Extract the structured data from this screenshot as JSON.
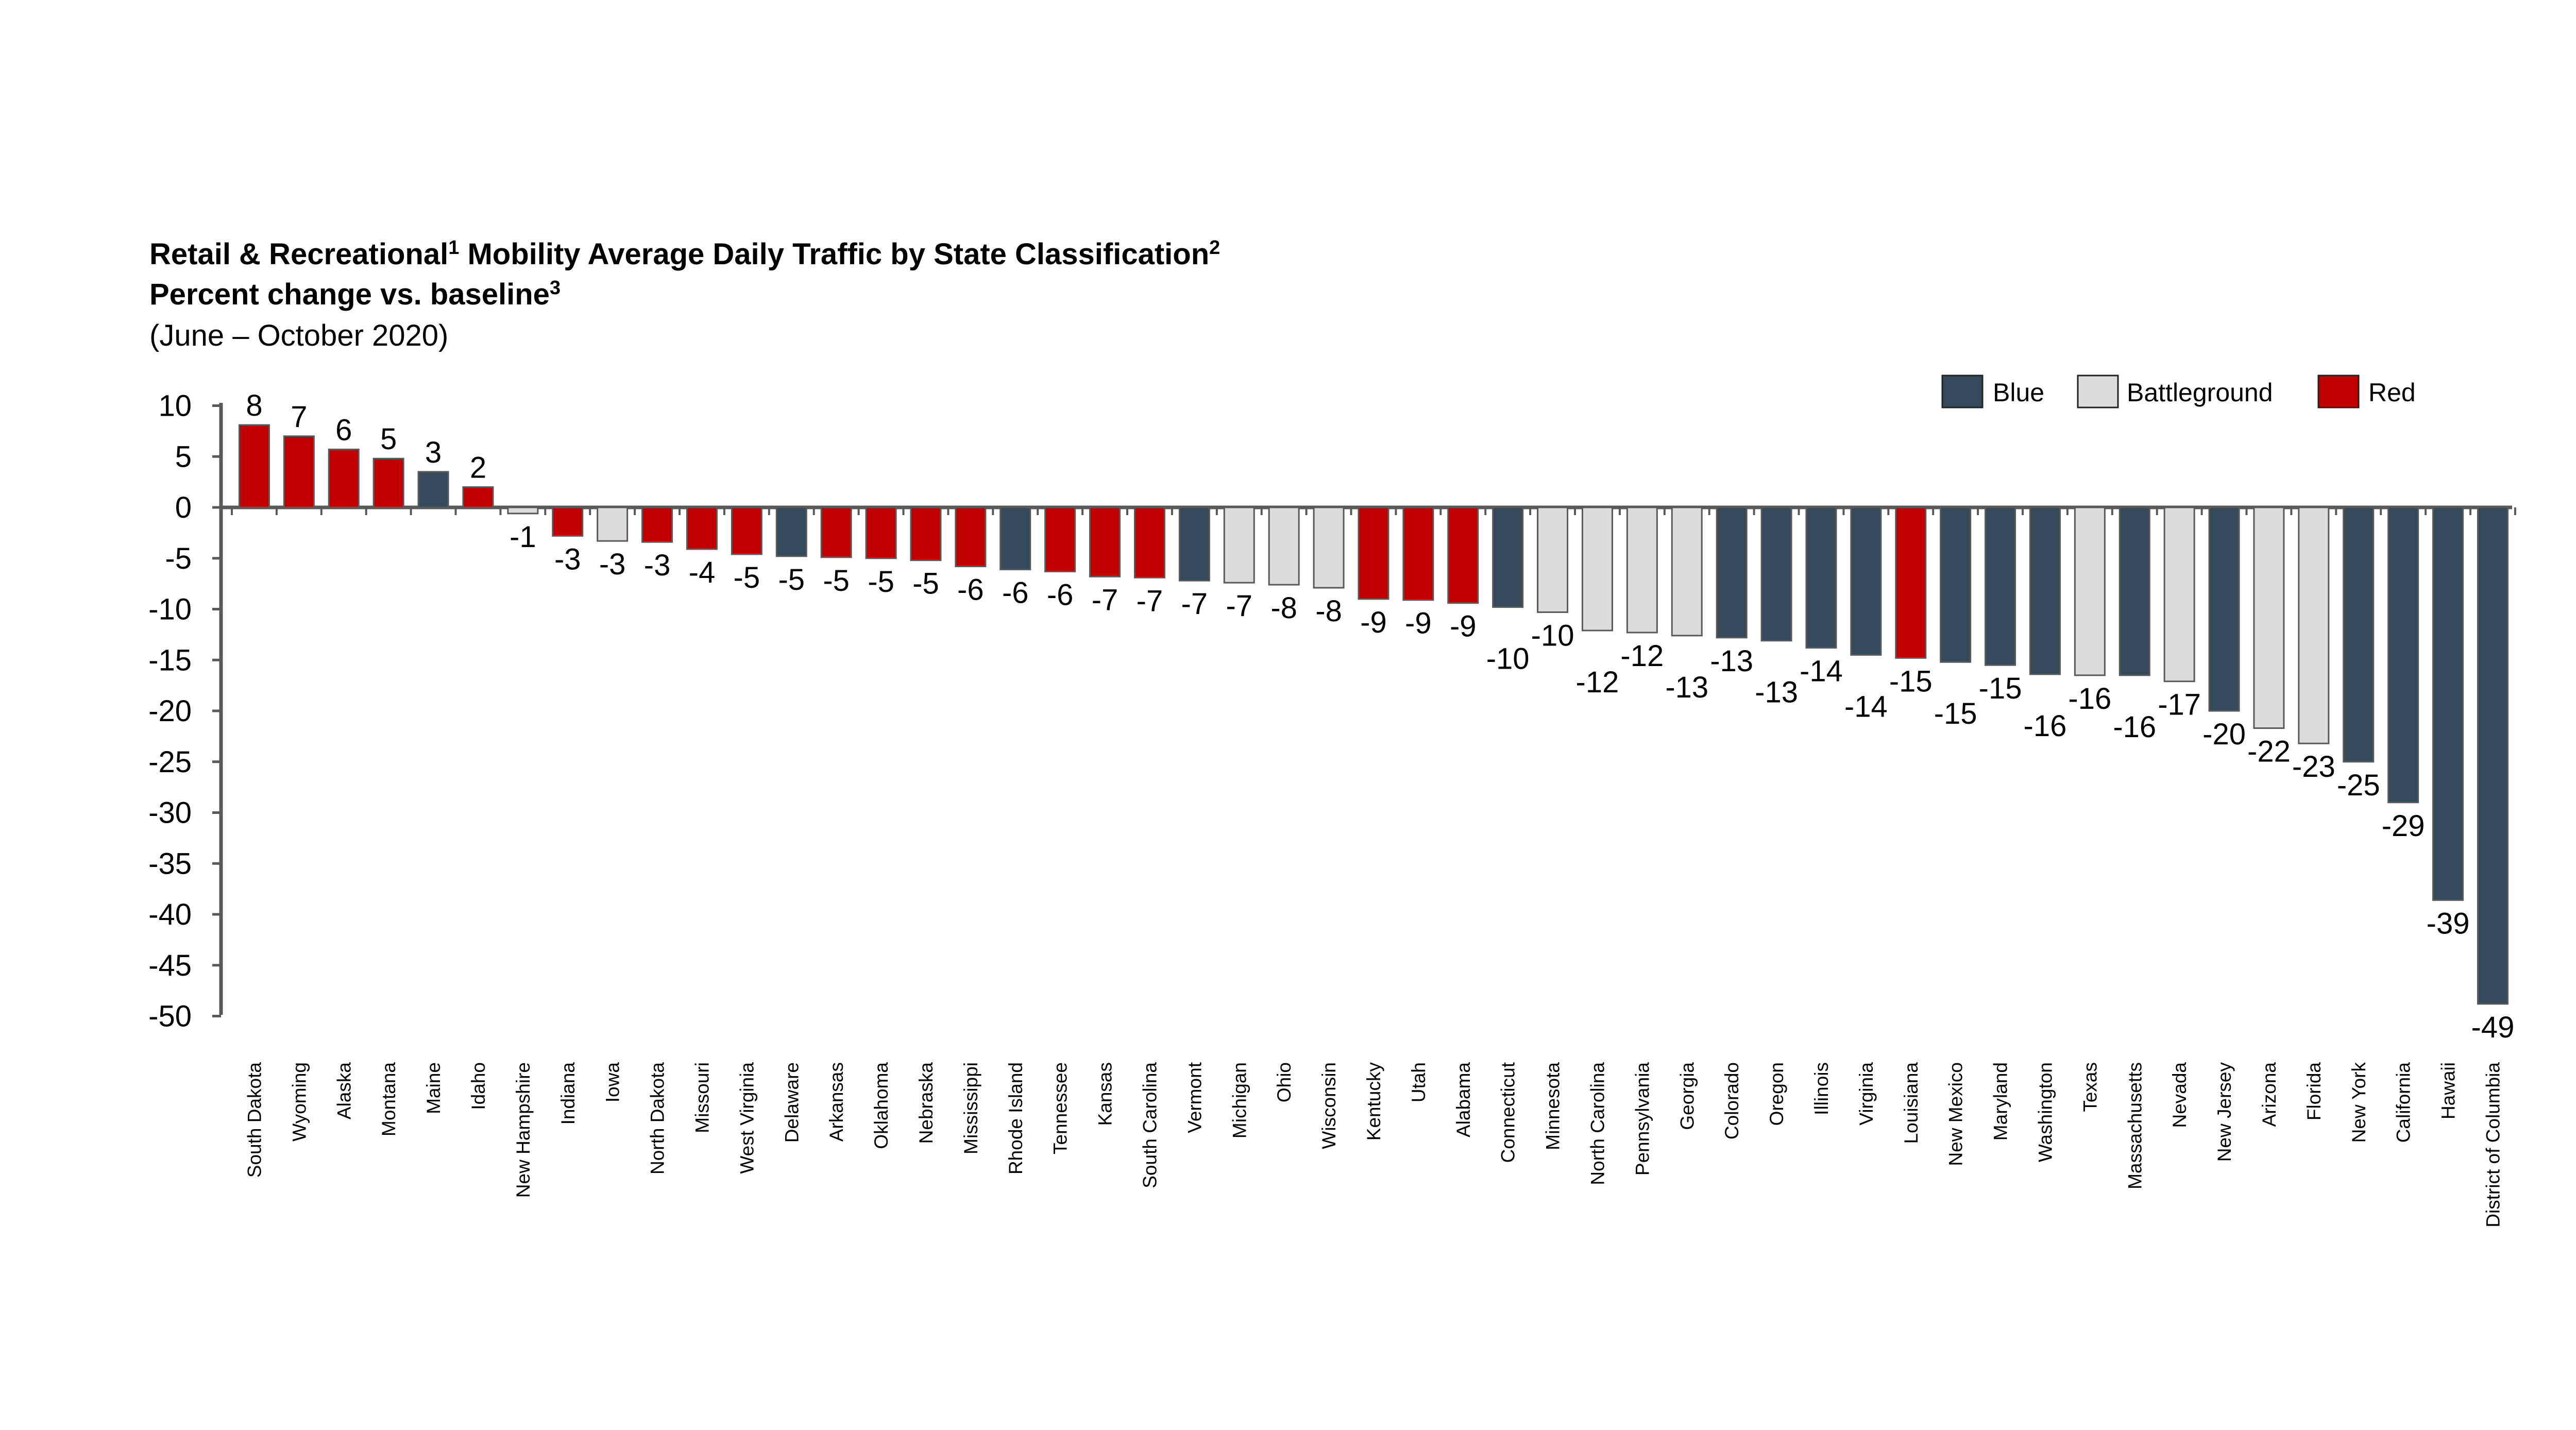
{
  "chart_data": {
    "type": "bar",
    "title": "Retail & Recreational",
    "title_sup1": "1",
    "title_mid": " Mobility Average Daily Traffic by State Classification",
    "title_sup2": "2",
    "subtitle": "Percent change vs. baseline",
    "subtitle_sup": "3",
    "date_range": "(June – October 2020)",
    "ylim": [
      -50,
      10
    ],
    "yticks": [
      10,
      5,
      0,
      -5,
      -10,
      -15,
      -20,
      -25,
      -30,
      -35,
      -40,
      -45,
      -50
    ],
    "legend": [
      {
        "name": "Blue",
        "color": "#34495a"
      },
      {
        "name": "Battleground",
        "color": "#dcdcdc"
      },
      {
        "name": "Red",
        "color": "#c00000"
      }
    ],
    "legend_placement": "top-right",
    "categories": [
      "South Dakota",
      "Wyoming",
      "Alaska",
      "Montana",
      "Maine",
      "Idaho",
      "New Hampshire",
      "Indiana",
      "Iowa",
      "North Dakota",
      "Missouri",
      "West Virginia",
      "Delaware",
      "Arkansas",
      "Oklahoma",
      "Nebraska",
      "Mississippi",
      "Rhode Island",
      "Tennessee",
      "Kansas",
      "South Carolina",
      "Vermont",
      "Michigan",
      "Ohio",
      "Wisconsin",
      "Kentucky",
      "Utah",
      "Alabama",
      "Connecticut",
      "Minnesota",
      "North Carolina",
      "Pennsylvania",
      "Georgia",
      "Colorado",
      "Oregon",
      "Illinois",
      "Virginia",
      "Louisiana",
      "New Mexico",
      "Maryland",
      "Washington",
      "Texas",
      "Massachusetts",
      "Nevada",
      "New Jersey",
      "Arizona",
      "Florida",
      "New York",
      "California",
      "Hawaii",
      "District of Columbia"
    ],
    "values": [
      8.1,
      7.0,
      5.7,
      4.8,
      3.5,
      2.0,
      -0.6,
      -2.8,
      -3.3,
      -3.4,
      -4.1,
      -4.6,
      -4.8,
      -4.9,
      -5.0,
      -5.2,
      -5.8,
      -6.1,
      -6.3,
      -6.8,
      -6.9,
      -7.2,
      -7.4,
      -7.6,
      -7.9,
      -9.0,
      -9.1,
      -9.4,
      -9.8,
      -10.3,
      -12.1,
      -12.3,
      -12.6,
      -12.8,
      -13.1,
      -13.8,
      -14.5,
      -14.8,
      -15.2,
      -15.5,
      -16.4,
      -16.5,
      -16.5,
      -17.1,
      -20.0,
      -21.7,
      -23.2,
      -25.0,
      -29.0,
      -38.6,
      -48.8
    ],
    "value_labels": [
      "8",
      "7",
      "6",
      "5",
      "3",
      "2",
      "-1",
      "-3",
      "-3",
      "-3",
      "-4",
      "-5",
      "-5",
      "-5",
      "-5",
      "-5",
      "-6",
      "-6",
      "-6",
      "-7",
      "-7",
      "-7",
      "-7",
      "-8",
      "-8",
      "-9",
      "-9",
      "-9",
      "-10",
      "-10",
      "-12",
      "-12",
      "-13",
      "-13",
      "-13",
      "-14",
      "-14",
      "-15",
      "-15",
      "-15",
      "-16",
      "-16",
      "-16",
      "-17",
      "-20",
      "-22",
      "-23",
      "-25",
      "-29",
      "-39",
      "-49"
    ],
    "classification": [
      "Red",
      "Red",
      "Red",
      "Red",
      "Blue",
      "Red",
      "Battleground",
      "Red",
      "Battleground",
      "Red",
      "Red",
      "Red",
      "Blue",
      "Red",
      "Red",
      "Red",
      "Red",
      "Blue",
      "Red",
      "Red",
      "Red",
      "Blue",
      "Battleground",
      "Battleground",
      "Battleground",
      "Red",
      "Red",
      "Red",
      "Blue",
      "Battleground",
      "Battleground",
      "Battleground",
      "Battleground",
      "Blue",
      "Blue",
      "Blue",
      "Blue",
      "Red",
      "Blue",
      "Blue",
      "Blue",
      "Battleground",
      "Blue",
      "Battleground",
      "Blue",
      "Battleground",
      "Battleground",
      "Blue",
      "Blue",
      "Blue",
      "Blue"
    ],
    "grid": false
  }
}
